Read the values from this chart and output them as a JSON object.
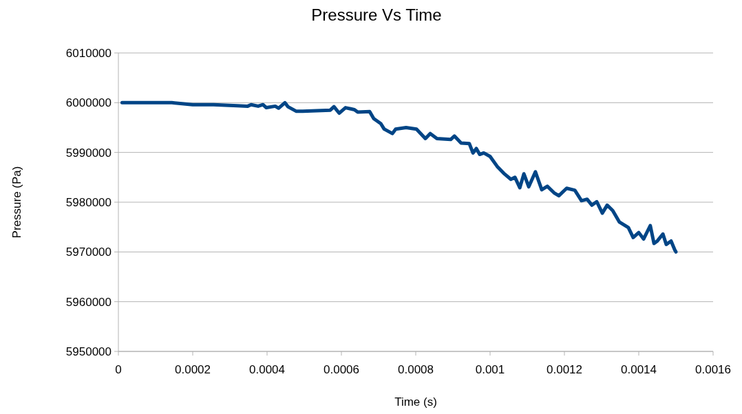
{
  "chart_data": {
    "type": "line",
    "title": "Pressure Vs Time",
    "xlabel": "Time (s)",
    "ylabel": "Pressure (Pa)",
    "xlim": [
      0,
      0.0016
    ],
    "xticks": [
      0,
      0.0002,
      0.0004,
      0.0006,
      0.0008,
      0.001,
      0.0012,
      0.0014,
      0.0016
    ],
    "ylim": [
      5950000,
      6010000
    ],
    "yticks": [
      5950000,
      5960000,
      5970000,
      5980000,
      5990000,
      6000000,
      6010000
    ],
    "grid": "y",
    "marker": "none",
    "line_style": "solid",
    "series": [
      {
        "color": "#004586",
        "x": [
          1e-05,
          0.000144,
          0.0002,
          0.000256,
          0.00032,
          0.000348,
          0.000357,
          0.000376,
          0.000389,
          0.000398,
          0.000422,
          0.000431,
          0.000448,
          0.000456,
          0.000478,
          0.000496,
          0.00057,
          0.00058,
          0.000594,
          0.000611,
          0.000635,
          0.000644,
          0.000676,
          0.000687,
          0.000706,
          0.000715,
          0.000737,
          0.000746,
          0.000774,
          0.000802,
          0.000826,
          0.000839,
          0.000857,
          0.000894,
          0.000904,
          0.000922,
          0.000944,
          0.000954,
          0.000963,
          0.000972,
          0.000983,
          0.001,
          0.001019,
          0.001037,
          0.001056,
          0.001067,
          0.00108,
          0.001091,
          0.001104,
          0.001122,
          0.001139,
          0.001154,
          0.001172,
          0.001185,
          0.001206,
          0.001228,
          0.001246,
          0.001261,
          0.001274,
          0.001287,
          0.001302,
          0.001315,
          0.00133,
          0.001348,
          0.001372,
          0.001385,
          0.0014,
          0.001413,
          0.001431,
          0.001441,
          0.00145,
          0.001465,
          0.001474,
          0.001487,
          0.001497,
          0.0015
        ],
        "values": [
          6000000,
          6000000,
          5999600,
          5999600,
          5999400,
          5999300,
          5999600,
          5999300,
          5999600,
          5999000,
          5999300,
          5998900,
          6000000,
          5999200,
          5998300,
          5998300,
          5998500,
          5999200,
          5997900,
          5999000,
          5998600,
          5998100,
          5998200,
          5996800,
          5995800,
          5994700,
          5993800,
          5994700,
          5995000,
          5994700,
          5992800,
          5993800,
          5992800,
          5992600,
          5993300,
          5991900,
          5991800,
          5989900,
          5990800,
          5989600,
          5989900,
          5989200,
          5987200,
          5985800,
          5984600,
          5985000,
          5982900,
          5985700,
          5983100,
          5986100,
          5982500,
          5983200,
          5981900,
          5981300,
          5982800,
          5982400,
          5980300,
          5980600,
          5979400,
          5980100,
          5977800,
          5979400,
          5978300,
          5976000,
          5974900,
          5972900,
          5973900,
          5972600,
          5975300,
          5971700,
          5972200,
          5973600,
          5971500,
          5972200,
          5970400,
          5970000
        ]
      }
    ]
  }
}
